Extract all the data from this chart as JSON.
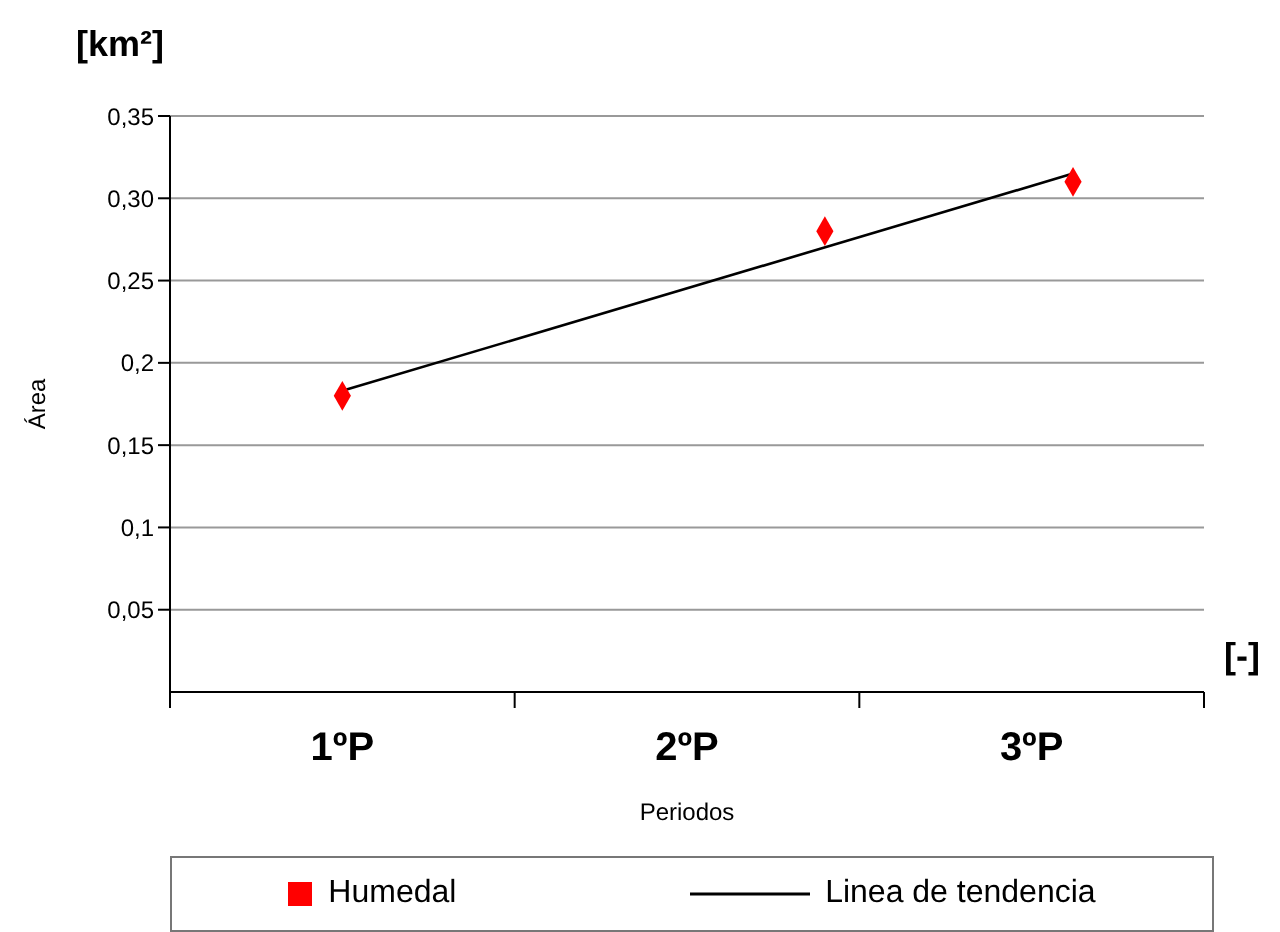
{
  "chart_data": {
    "type": "scatter",
    "xlabel": "Periodos",
    "ylabel": "Área",
    "annotations": [
      "[km²]",
      "[-]"
    ],
    "xlim": [
      0.5,
      3.5
    ],
    "xticks": [
      {
        "value": 0.5,
        "label": null
      },
      {
        "value": 1,
        "label": "1ºP"
      },
      {
        "value": 1.5,
        "label": null
      },
      {
        "value": 2,
        "label": "2ºP"
      },
      {
        "value": 2.5,
        "label": null
      },
      {
        "value": 3,
        "label": "3ºP"
      },
      {
        "value": 3.5,
        "label": null
      }
    ],
    "ylim": [
      0,
      0.35
    ],
    "yticks": [
      {
        "value": 0.05,
        "label": "0,05"
      },
      {
        "value": 0.1,
        "label": "0,1"
      },
      {
        "value": 0.15,
        "label": "0,15"
      },
      {
        "value": 0.2,
        "label": "0,2"
      },
      {
        "value": 0.25,
        "label": "0,25"
      },
      {
        "value": 0.3,
        "label": "0,30"
      },
      {
        "value": 0.35,
        "label": "0,35"
      }
    ],
    "grid": "y",
    "legend": "bottom",
    "marker": "diamond",
    "series": [
      {
        "name": "Humedal",
        "color": "#ff0000",
        "x": [
          1,
          2.4,
          3.12
        ],
        "values": [
          0.18,
          0.28,
          0.31
        ]
      },
      {
        "name": "Linea de tendencia",
        "type": "line",
        "color": "#000000",
        "marker": "none",
        "x": [
          1,
          3.12
        ],
        "values": [
          0.183,
          0.315
        ]
      }
    ]
  }
}
